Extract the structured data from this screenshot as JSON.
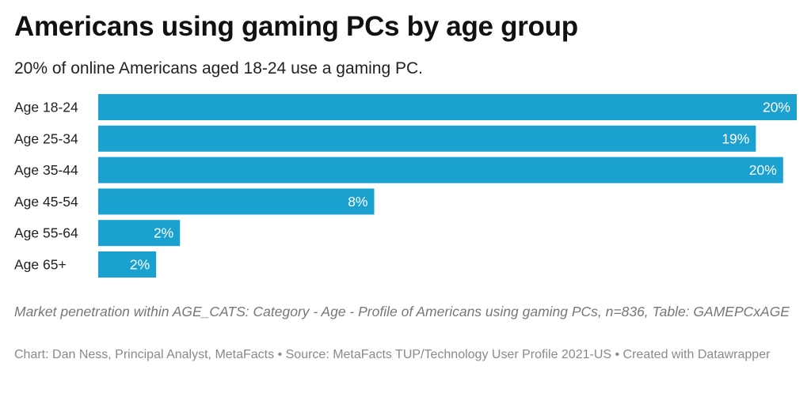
{
  "header": {
    "title": "Americans using gaming PCs by age group",
    "subtitle": "20% of online Americans aged 18-24 use a gaming PC."
  },
  "footer": {
    "notes": "Market penetration within AGE_CATS: Category - Age - Profile of Americans using gaming PCs, n=836, Table: GAMEPCxAGE",
    "credits": "Chart: Dan Ness, Principal Analyst, MetaFacts • Source: MetaFacts TUP/Technology User Profile 2021-US • Created with Datawrapper"
  },
  "colors": {
    "bar": "#1ba1cf",
    "bar_label": "#ffffff",
    "category_label": "#222222"
  },
  "chart_data": {
    "type": "bar",
    "orientation": "horizontal",
    "categories": [
      "Age 18-24",
      "Age 25-34",
      "Age 35-44",
      "Age 45-54",
      "Age 55-64",
      "Age 65+"
    ],
    "values": [
      20.5,
      19.3,
      20.1,
      8.1,
      2.4,
      1.7
    ],
    "value_labels": [
      "20%",
      "19%",
      "20%",
      "8%",
      "2%",
      "2%"
    ],
    "title": "Americans using gaming PCs by age group",
    "xlabel": "",
    "ylabel": "",
    "xlim": [
      0,
      20.5
    ],
    "grid": false,
    "legend": "none"
  }
}
